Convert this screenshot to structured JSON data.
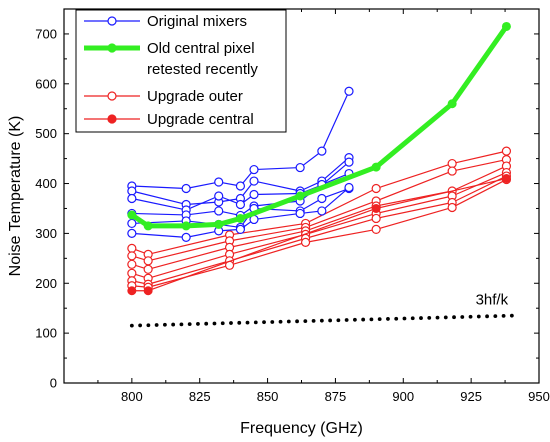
{
  "chart_data": {
    "type": "line",
    "title": "",
    "xlabel": "Frequency (GHz)",
    "ylabel": "Noise Temperature (K)",
    "xlim": [
      775,
      950
    ],
    "ylim": [
      0,
      750
    ],
    "xticks": [
      800,
      825,
      850,
      875,
      900,
      925,
      950
    ],
    "yticks": [
      0,
      100,
      200,
      300,
      400,
      500,
      600,
      700
    ],
    "grid": false,
    "legend_position": "top-left",
    "colors": {
      "original": "#1a1aff",
      "old_central": "#33ee22",
      "upgrade": "#ee2222",
      "reference": "#000000"
    },
    "legend": [
      {
        "label": "Original mixers",
        "group": "original"
      },
      {
        "label": "Old central pixel",
        "label2": "retested recently",
        "group": "old_central"
      },
      {
        "label": "Upgrade outer",
        "group": "upgrade_outer"
      },
      {
        "label": "Upgrade central",
        "group": "upgrade_central"
      }
    ],
    "series": [
      {
        "name": "Original mixers",
        "group": "original",
        "x": [
          800,
          820,
          832,
          840,
          845,
          862,
          870,
          880
        ],
        "y": [
          395,
          390,
          403,
          395,
          428,
          432,
          465,
          585
        ]
      },
      {
        "group": "original",
        "x": [
          800,
          820,
          832,
          840,
          845,
          862,
          870,
          880
        ],
        "y": [
          385,
          358,
          363,
          370,
          405,
          385,
          405,
          452
        ]
      },
      {
        "group": "original",
        "x": [
          800,
          820,
          832,
          840,
          845,
          862,
          870,
          880
        ],
        "y": [
          370,
          347,
          375,
          358,
          378,
          380,
          397,
          443
        ]
      },
      {
        "group": "original",
        "x": [
          800,
          820,
          832,
          840,
          845,
          862,
          870,
          880
        ],
        "y": [
          340,
          337,
          345,
          336,
          355,
          365,
          398,
          420
        ]
      },
      {
        "group": "original",
        "x": [
          800,
          820,
          832,
          840,
          845,
          862,
          870,
          880
        ],
        "y": [
          320,
          325,
          318,
          312,
          350,
          345,
          370,
          390
        ]
      },
      {
        "group": "original",
        "x": [
          800,
          820,
          832,
          840,
          845,
          862,
          870,
          880
        ],
        "y": [
          300,
          292,
          305,
          308,
          328,
          340,
          345,
          392
        ]
      },
      {
        "name": "Old central pixel retested recently",
        "group": "old_central",
        "x": [
          800,
          806,
          820,
          832,
          840,
          862,
          890,
          918,
          938
        ],
        "y": [
          337,
          315,
          315,
          318,
          330,
          375,
          433,
          560,
          715
        ]
      },
      {
        "name": "Upgrade outer",
        "group": "upgrade_outer",
        "x": [
          800,
          806,
          836,
          864,
          890,
          918,
          938
        ],
        "y": [
          270,
          258,
          297,
          320,
          390,
          440,
          465
        ]
      },
      {
        "group": "upgrade_outer",
        "x": [
          800,
          806,
          836,
          864,
          890,
          918,
          938
        ],
        "y": [
          255,
          245,
          285,
          312,
          365,
          425,
          448
        ]
      },
      {
        "group": "upgrade_outer",
        "x": [
          800,
          806,
          836,
          864,
          890,
          918,
          938
        ],
        "y": [
          238,
          228,
          272,
          305,
          355,
          385,
          435
        ]
      },
      {
        "group": "upgrade_outer",
        "x": [
          800,
          806,
          836,
          864,
          890,
          918,
          938
        ],
        "y": [
          220,
          210,
          258,
          298,
          340,
          375,
          422
        ]
      },
      {
        "group": "upgrade_outer",
        "x": [
          800,
          806,
          836,
          864,
          890,
          918,
          938
        ],
        "y": [
          205,
          198,
          245,
          290,
          330,
          362,
          415
        ]
      },
      {
        "group": "upgrade_outer",
        "x": [
          800,
          806,
          836,
          864,
          890,
          918,
          938
        ],
        "y": [
          195,
          192,
          236,
          282,
          308,
          352,
          408
        ]
      },
      {
        "name": "Upgrade central",
        "group": "upgrade_central",
        "x": [
          800,
          806,
          890,
          938
        ],
        "y": [
          185,
          185,
          350,
          410
        ]
      }
    ],
    "reference_line": {
      "label": "3hf/k",
      "x": [
        800,
        940
      ],
      "y": [
        115,
        135
      ],
      "style": "dotted"
    }
  }
}
